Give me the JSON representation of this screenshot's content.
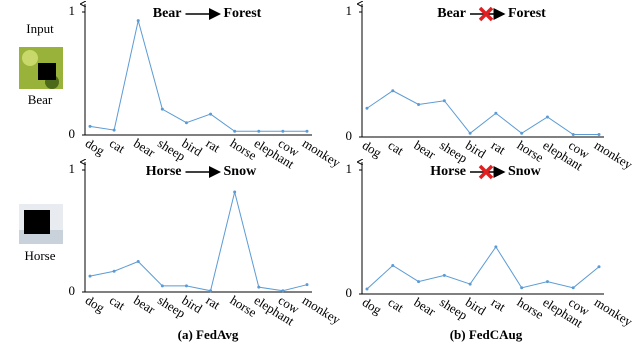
{
  "input_panel": {
    "label": "Input",
    "samples": [
      "Bear",
      "Horse"
    ]
  },
  "captions": [
    "(a) FedAvg",
    "(b) FedCAug"
  ],
  "chart_data": [
    {
      "type": "line",
      "source": "Bear",
      "target": "Forest",
      "blocked": false,
      "color": "#5b9bd5",
      "categories": [
        "dog",
        "cat",
        "bear",
        "sheep",
        "bird",
        "rat",
        "horse",
        "elephant",
        "cow",
        "monkey"
      ],
      "values": [
        0.07,
        0.04,
        0.93,
        0.21,
        0.1,
        0.17,
        0.03,
        0.03,
        0.03,
        0.03
      ],
      "ylim": [
        0,
        1
      ],
      "yticks": [
        0,
        1
      ]
    },
    {
      "type": "line",
      "source": "Bear",
      "target": "Forest",
      "blocked": true,
      "color": "#5b9bd5",
      "categories": [
        "dog",
        "cat",
        "bear",
        "sheep",
        "bird",
        "rat",
        "horse",
        "elephant",
        "cow",
        "monkey"
      ],
      "values": [
        0.23,
        0.37,
        0.26,
        0.29,
        0.03,
        0.19,
        0.03,
        0.16,
        0.02,
        0.02
      ],
      "ylim": [
        0,
        1
      ],
      "yticks": [
        0,
        1
      ]
    },
    {
      "type": "line",
      "source": "Horse",
      "target": "Snow",
      "blocked": false,
      "color": "#5b9bd5",
      "categories": [
        "dog",
        "cat",
        "bear",
        "sheep",
        "bird",
        "rat",
        "horse",
        "elephant",
        "cow",
        "monkey"
      ],
      "values": [
        0.13,
        0.17,
        0.25,
        0.05,
        0.05,
        0.01,
        0.82,
        0.04,
        0.01,
        0.06
      ],
      "ylim": [
        0,
        1
      ],
      "yticks": [
        0,
        1
      ]
    },
    {
      "type": "line",
      "source": "Horse",
      "target": "Snow",
      "blocked": true,
      "color": "#5b9bd5",
      "categories": [
        "dog",
        "cat",
        "bear",
        "sheep",
        "bird",
        "rat",
        "horse",
        "elephant",
        "cow",
        "monkey"
      ],
      "values": [
        0.04,
        0.23,
        0.1,
        0.15,
        0.08,
        0.38,
        0.05,
        0.1,
        0.05,
        0.22
      ],
      "ylim": [
        0,
        1
      ],
      "yticks": [
        0,
        1
      ]
    }
  ]
}
